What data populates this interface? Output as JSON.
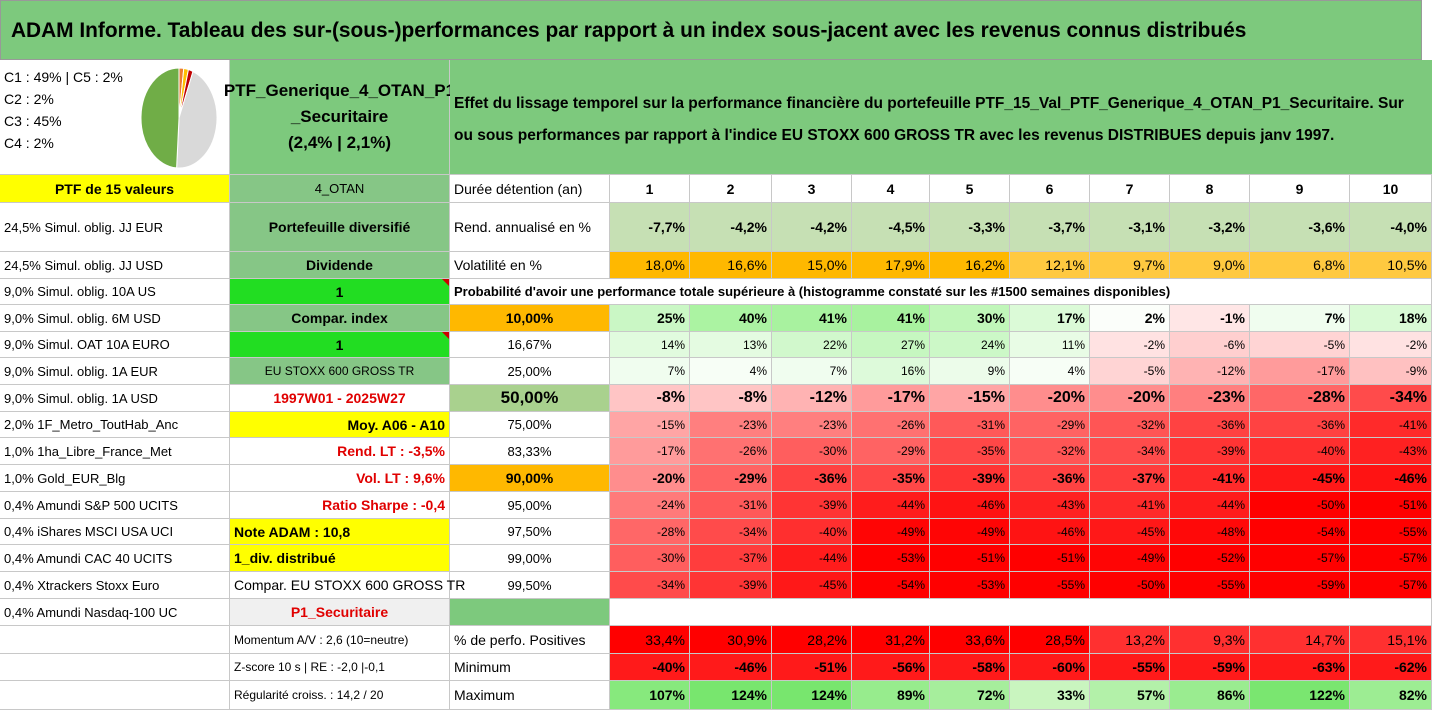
{
  "title": "ADAM Informe. Tableau des sur-(sous-)performances par rapport à un index sous-jacent avec les revenus connus distribués",
  "legend": [
    "C1 : 49% | C5 : 2%",
    "C2 : 2%",
    "C3 : 45%",
    "C4 : 2%"
  ],
  "pie": {
    "slices": [
      {
        "label": "C1",
        "value": 49,
        "color": "#70ad47"
      },
      {
        "label": "C2",
        "value": 2,
        "color": "#ed7d31"
      },
      {
        "label": "C3",
        "value": 45,
        "color": "#d9d9d9"
      },
      {
        "label": "C4",
        "value": 2,
        "color": "#ffc000"
      },
      {
        "label": "C5",
        "value": 2,
        "color": "#c00000"
      }
    ]
  },
  "ptf": {
    "name_line1": "PTF_Generique_4_OTAN_P1",
    "name_line2": "_Securitaire",
    "name_line3": "(2,4% | 2,1%)"
  },
  "description": "Effet du lissage temporel sur la performance financière du portefeuille PTF_15_Val_PTF_Generique_4_OTAN_P1_Securitaire. Sur ou sous performances par rapport à l'indice EU STOXX 600 GROSS TR avec les revenus DISTRIBUES depuis janv 1997.",
  "holdings_header": "PTF de 15 valeurs",
  "holdings": [
    "24,5% Simul. oblig. JJ EUR",
    "24,5% Simul. oblig. JJ USD",
    "9,0% Simul. oblig. 10A US",
    "9,0% Simul. oblig. 6M USD",
    "9,0% Simul. OAT 10A EURO",
    "9,0% Simul. oblig. 1A EUR",
    "9,0% Simul. oblig. 1A USD",
    "2,0% 1F_Metro_ToutHab_Anc",
    "1,0% 1ha_Libre_France_Met",
    "1,0% Gold_EUR_Blg",
    "0,4% Amundi S&P 500 UCITS",
    "0,4% iShares MSCI USA UCI",
    "0,4% Amundi CAC 40 UCITS",
    "0,4% Xtrackers Stoxx Euro",
    "0,4% Amundi Nasdaq-100 UC"
  ],
  "info": {
    "otan": "4_OTAN",
    "diversifie": "Portefeuille diversifié",
    "dividende": "Dividende",
    "val1": "1",
    "compar_index": "Compar. index",
    "val2": "1",
    "index_name": "EU STOXX 600 GROSS TR",
    "period": "1997W01 - 2025W27",
    "moy": "Moy. A06 - A10",
    "rend_lt": "Rend. LT : -3,5%",
    "vol_lt": "Vol. LT : 9,6%",
    "sharpe": "Ratio Sharpe : -0,4",
    "note": "Note ADAM : 10,8",
    "div": "1_div. distribué",
    "compar_full": "Compar. EU STOXX 600 GROSS TR",
    "p1": "P1_Securitaire",
    "momentum": "Momentum A/V : 2,6 (10=neutre)",
    "zscore": "Z-score 10 s | RE : -2,0 |-0,1",
    "regularite": "Régularité croiss. : 14,2 / 20"
  },
  "table": {
    "duree_label": "Durée détention (an)",
    "years": [
      "1",
      "2",
      "3",
      "4",
      "5",
      "6",
      "7",
      "8",
      "9",
      "10"
    ],
    "rend_label": "Rend. annualisé en %",
    "rend": [
      "-7,7%",
      "-4,2%",
      "-4,2%",
      "-4,5%",
      "-3,3%",
      "-3,7%",
      "-3,1%",
      "-3,2%",
      "-3,6%",
      "-4,0%"
    ],
    "vol_label": "Volatilité en %",
    "vol": [
      "18,0%",
      "16,6%",
      "15,0%",
      "17,9%",
      "16,2%",
      "12,1%",
      "9,7%",
      "9,0%",
      "6,8%",
      "10,5%"
    ],
    "prob_title": "Probabilité d'avoir une performance totale supérieure à (histogramme constaté sur les #1500 semaines disponibles)",
    "prob_rows": [
      {
        "p": "10,00%",
        "v": [
          "25%",
          "40%",
          "41%",
          "41%",
          "30%",
          "17%",
          "2%",
          "-1%",
          "7%",
          "18%"
        ]
      },
      {
        "p": "16,67%",
        "v": [
          "14%",
          "13%",
          "22%",
          "27%",
          "24%",
          "11%",
          "-2%",
          "-6%",
          "-5%",
          "-2%"
        ]
      },
      {
        "p": "25,00%",
        "v": [
          "7%",
          "4%",
          "7%",
          "16%",
          "9%",
          "4%",
          "-5%",
          "-12%",
          "-17%",
          "-9%"
        ]
      },
      {
        "p": "50,00%",
        "v": [
          "-8%",
          "-8%",
          "-12%",
          "-17%",
          "-15%",
          "-20%",
          "-20%",
          "-23%",
          "-28%",
          "-34%"
        ]
      },
      {
        "p": "75,00%",
        "v": [
          "-15%",
          "-23%",
          "-23%",
          "-26%",
          "-31%",
          "-29%",
          "-32%",
          "-36%",
          "-36%",
          "-41%"
        ]
      },
      {
        "p": "83,33%",
        "v": [
          "-17%",
          "-26%",
          "-30%",
          "-29%",
          "-35%",
          "-32%",
          "-34%",
          "-39%",
          "-40%",
          "-43%"
        ]
      },
      {
        "p": "90,00%",
        "v": [
          "-20%",
          "-29%",
          "-36%",
          "-35%",
          "-39%",
          "-36%",
          "-37%",
          "-41%",
          "-45%",
          "-46%"
        ]
      },
      {
        "p": "95,00%",
        "v": [
          "-24%",
          "-31%",
          "-39%",
          "-44%",
          "-46%",
          "-43%",
          "-41%",
          "-44%",
          "-50%",
          "-51%"
        ]
      },
      {
        "p": "97,50%",
        "v": [
          "-28%",
          "-34%",
          "-40%",
          "-49%",
          "-49%",
          "-46%",
          "-45%",
          "-48%",
          "-54%",
          "-55%"
        ]
      },
      {
        "p": "99,00%",
        "v": [
          "-30%",
          "-37%",
          "-44%",
          "-53%",
          "-51%",
          "-51%",
          "-49%",
          "-52%",
          "-57%",
          "-57%"
        ]
      },
      {
        "p": "99,50%",
        "v": [
          "-34%",
          "-39%",
          "-45%",
          "-54%",
          "-53%",
          "-55%",
          "-50%",
          "-55%",
          "-59%",
          "-57%"
        ]
      }
    ],
    "pos_label": "% de perfo. Positives",
    "pos": [
      "33,4%",
      "30,9%",
      "28,2%",
      "31,2%",
      "33,6%",
      "28,5%",
      "13,2%",
      "9,3%",
      "14,7%",
      "15,1%"
    ],
    "min_label": "Minimum",
    "min": [
      "-40%",
      "-46%",
      "-51%",
      "-56%",
      "-58%",
      "-60%",
      "-55%",
      "-59%",
      "-63%",
      "-62%"
    ],
    "max_label": "Maximum",
    "max": [
      "107%",
      "124%",
      "124%",
      "89%",
      "72%",
      "33%",
      "57%",
      "86%",
      "122%",
      "82%"
    ]
  },
  "colors": {
    "header_green": "#7dc97d",
    "yellow": "#ffff00",
    "orange": "#ffb800",
    "red_text": "#e00000"
  }
}
